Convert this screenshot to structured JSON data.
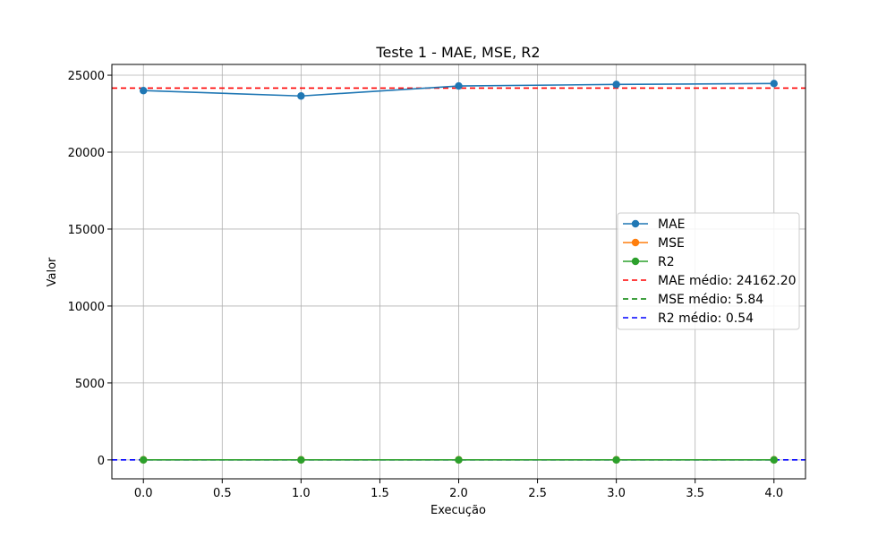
{
  "chart_data": {
    "type": "line",
    "title": "Teste 1 - MAE, MSE, R2",
    "xlabel": "Execução",
    "ylabel": "Valor",
    "xlim": [
      -0.2,
      4.2
    ],
    "ylim": [
      -1230,
      25700
    ],
    "x_ticks": [
      0.0,
      0.5,
      1.0,
      1.5,
      2.0,
      2.5,
      3.0,
      3.5,
      4.0
    ],
    "x_tick_labels": [
      "0.0",
      "0.5",
      "1.0",
      "1.5",
      "2.0",
      "2.5",
      "3.0",
      "3.5",
      "4.0"
    ],
    "y_ticks": [
      0,
      5000,
      10000,
      15000,
      20000,
      25000
    ],
    "y_tick_labels": [
      "0",
      "5000",
      "10000",
      "15000",
      "20000",
      "25000"
    ],
    "grid": true,
    "legend_position": "center-right",
    "x": [
      0,
      1,
      2,
      3,
      4
    ],
    "series": [
      {
        "name": "MAE",
        "values": [
          24000,
          23650,
          24300,
          24400,
          24460
        ],
        "color": "#1f77b4",
        "marker": "circle"
      },
      {
        "name": "MSE",
        "values": [
          5.84,
          5.84,
          5.84,
          5.84,
          5.84
        ],
        "color": "#ff7f0e",
        "marker": "circle"
      },
      {
        "name": "R2",
        "values": [
          0.54,
          0.54,
          0.54,
          0.54,
          0.54
        ],
        "color": "#2ca02c",
        "marker": "circle"
      }
    ],
    "reference_lines": [
      {
        "name": "MAE médio: 24162.20",
        "value": 24162.2,
        "color": "#ff0000",
        "style": "dashed"
      },
      {
        "name": "MSE médio: 5.84",
        "value": 5.84,
        "color": "#008000",
        "style": "dashed"
      },
      {
        "name": "R2 médio: 0.54",
        "value": 0.54,
        "color": "#0000ff",
        "style": "dashed"
      }
    ]
  }
}
